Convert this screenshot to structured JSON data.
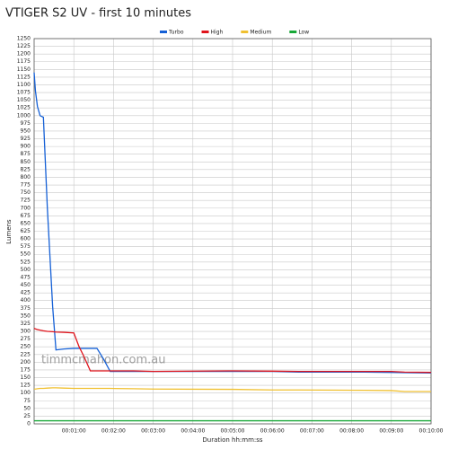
{
  "chart_data": {
    "type": "line",
    "title": "VTIGER S2 UV - first 10 minutes",
    "x_label": "Duration hh:mm:ss",
    "y_label": "Lumens",
    "annotation": "timmcmahon.com.au",
    "x": [
      0,
      2,
      5,
      9,
      14,
      20,
      28,
      33,
      45,
      60,
      68,
      75,
      85,
      95,
      105,
      115,
      150,
      180,
      300,
      360,
      400,
      500,
      540,
      560,
      600
    ],
    "series": [
      {
        "name": "Turbo",
        "color": "#1560d6",
        "values": [
          1140,
          1080,
          1030,
          1000,
          995,
          700,
          380,
          240,
          243,
          245,
          245,
          245,
          245,
          245,
          210,
          170,
          170,
          170,
          170,
          170,
          168,
          168,
          167,
          166,
          165
        ]
      },
      {
        "name": "High",
        "color": "#e0141c",
        "values": [
          310,
          308,
          306,
          304,
          302,
          300,
          299,
          298,
          297,
          295,
          250,
          220,
          172,
          172,
          172,
          172,
          172,
          170,
          172,
          171,
          170,
          170,
          170,
          168,
          167
        ]
      },
      {
        "name": "Medium",
        "color": "#f0c030",
        "values": [
          113,
          113,
          114,
          115,
          115,
          116,
          117,
          117,
          116,
          115,
          115,
          115,
          115,
          115,
          115,
          115,
          114,
          113,
          112,
          110,
          110,
          109,
          108,
          105,
          105
        ]
      },
      {
        "name": "Low",
        "color": "#18a838",
        "values": [
          10,
          10,
          10,
          10,
          10,
          10,
          10,
          10,
          10,
          10,
          10,
          10,
          10,
          10,
          10,
          10,
          10,
          10,
          10,
          10,
          10,
          10,
          10,
          10,
          10
        ]
      }
    ],
    "xlim": [
      0,
      600
    ],
    "xticks": [
      {
        "value": 60,
        "label": "00:01:00"
      },
      {
        "value": 120,
        "label": "00:02:00"
      },
      {
        "value": 180,
        "label": "00:03:00"
      },
      {
        "value": 240,
        "label": "00:04:00"
      },
      {
        "value": 300,
        "label": "00:05:00"
      },
      {
        "value": 360,
        "label": "00:06:00"
      },
      {
        "value": 420,
        "label": "00:07:00"
      },
      {
        "value": 480,
        "label": "00:08:00"
      },
      {
        "value": 540,
        "label": "00:09:00"
      },
      {
        "value": 600,
        "label": "00:10:00"
      }
    ],
    "ylim": [
      0,
      1250
    ],
    "yticks": [
      0,
      25,
      50,
      75,
      100,
      125,
      150,
      175,
      200,
      225,
      250,
      275,
      300,
      325,
      350,
      375,
      400,
      425,
      450,
      475,
      500,
      525,
      550,
      575,
      600,
      625,
      650,
      675,
      700,
      725,
      750,
      775,
      800,
      825,
      850,
      875,
      900,
      925,
      950,
      975,
      1000,
      1025,
      1050,
      1075,
      1100,
      1125,
      1150,
      1175,
      1200,
      1225,
      1250
    ],
    "grid": true
  }
}
